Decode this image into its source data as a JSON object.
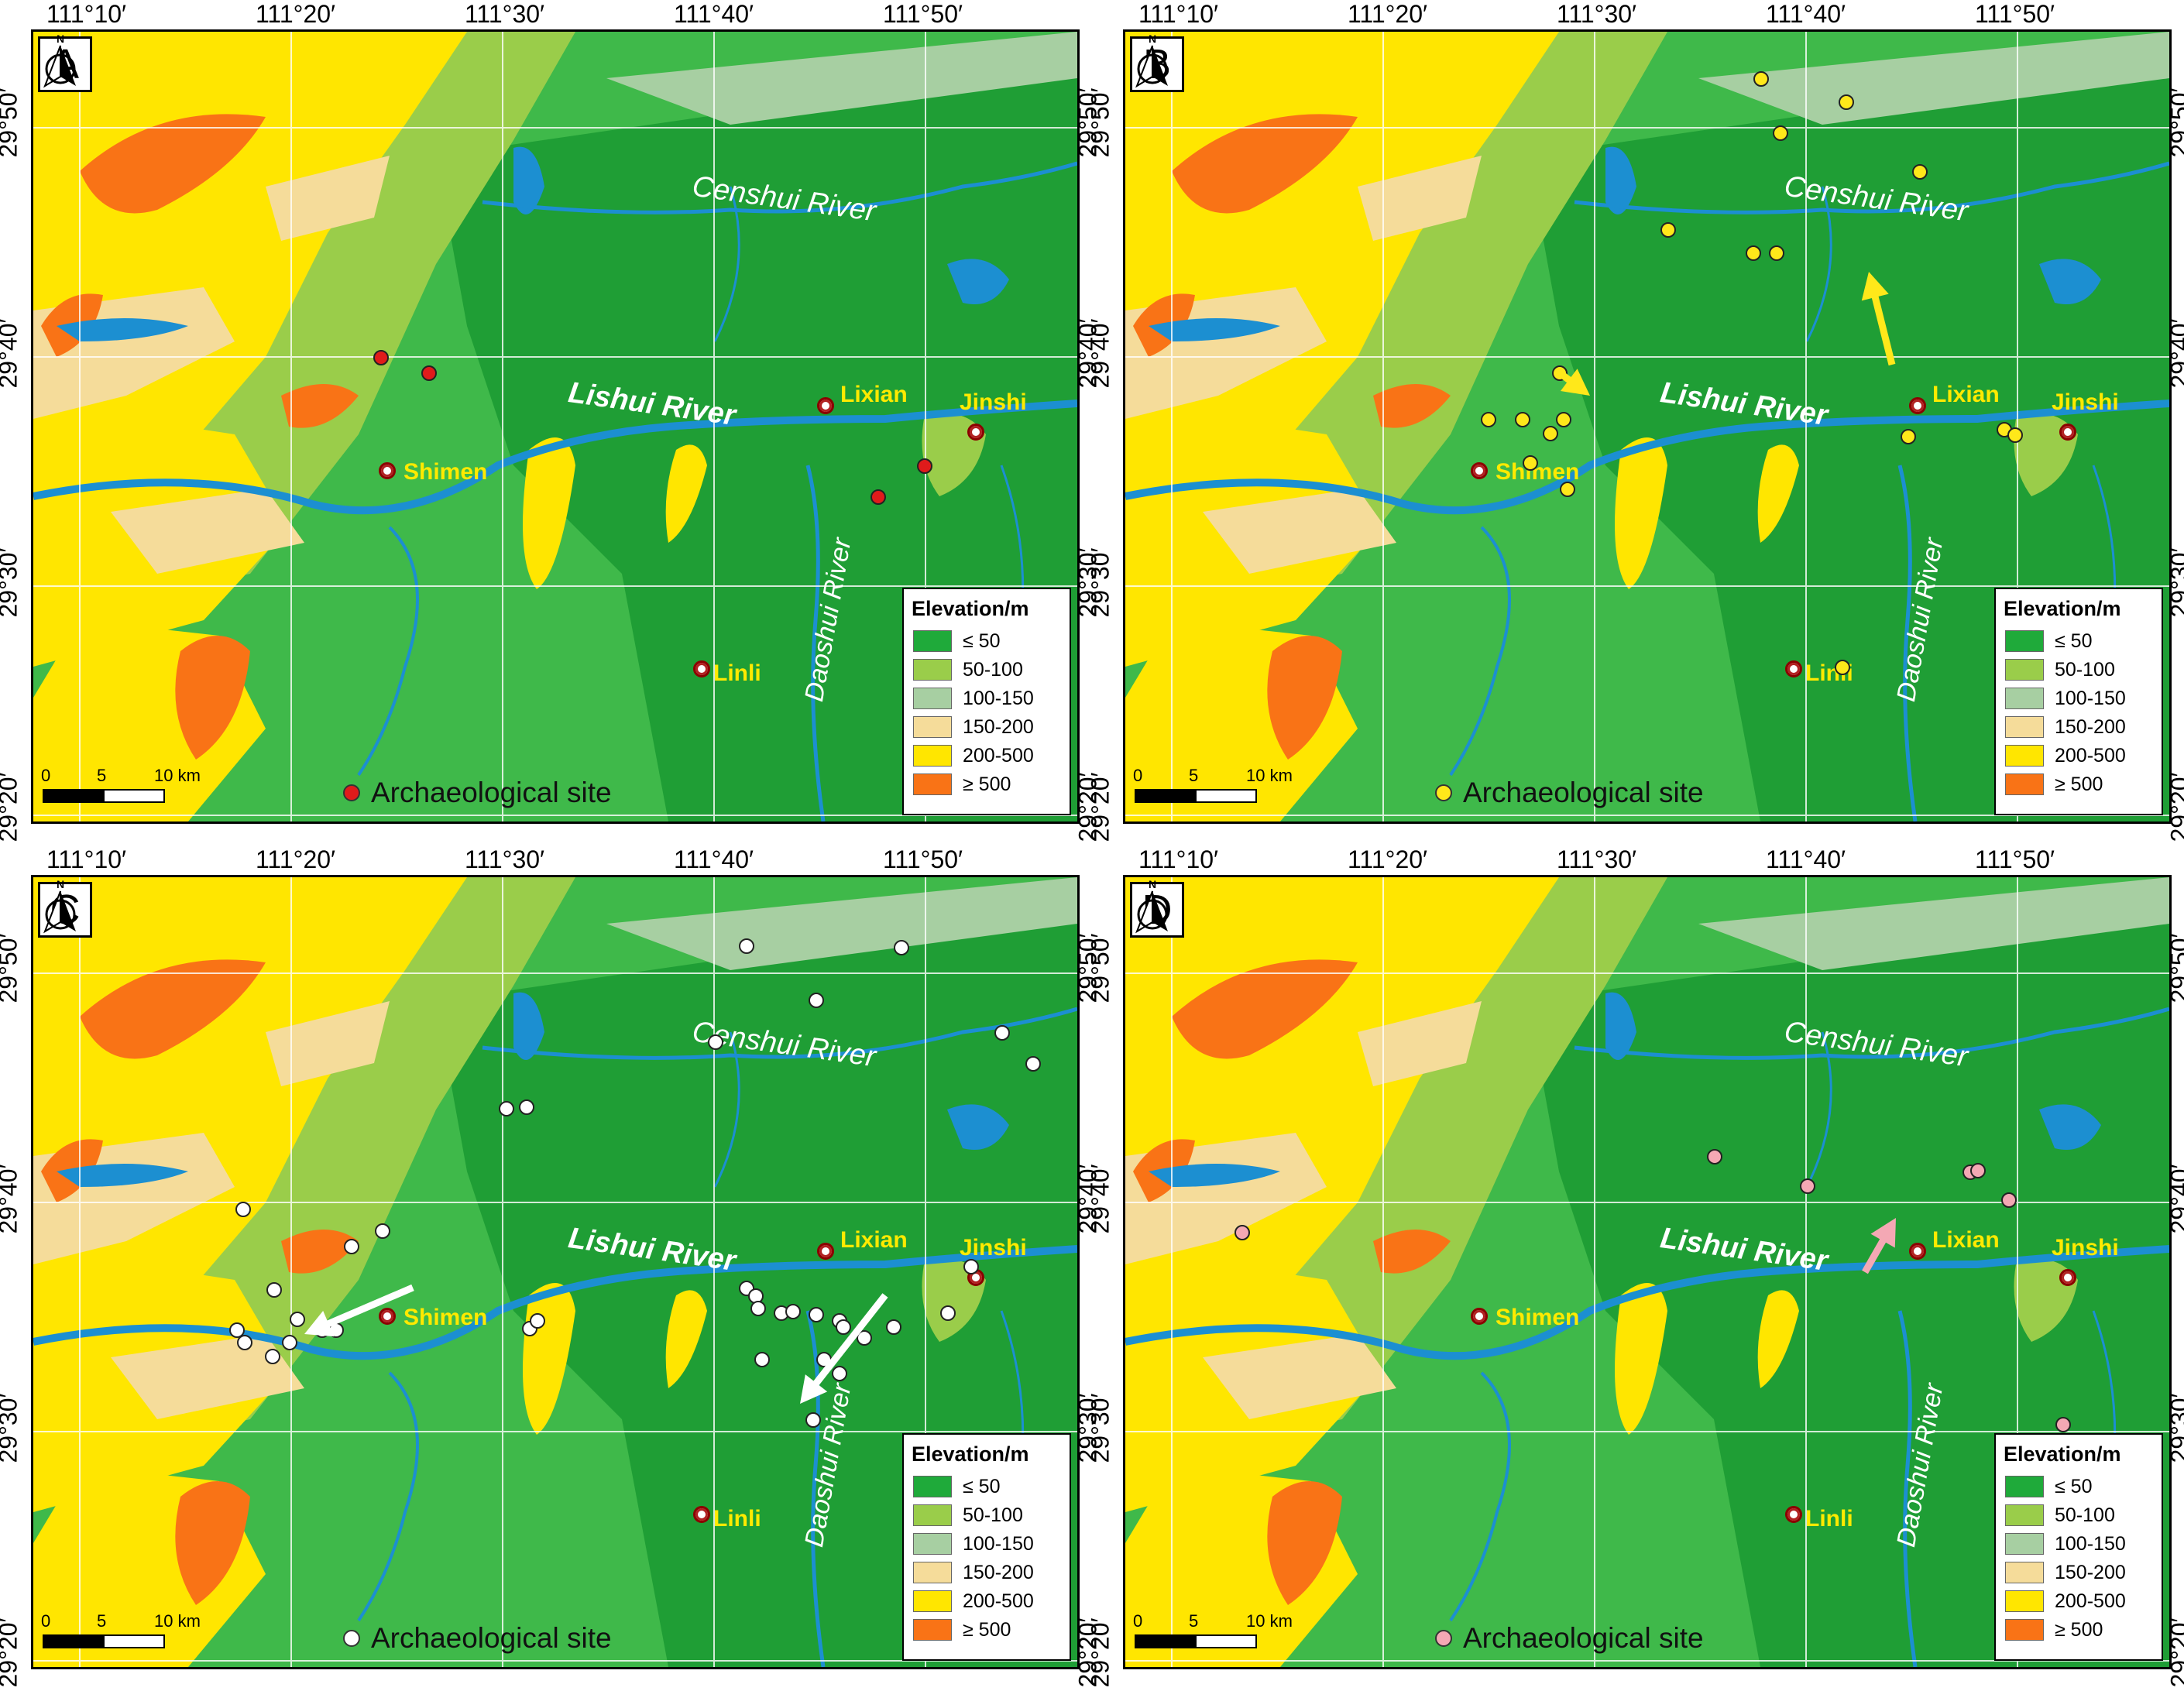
{
  "lon_labels": [
    "111°10′",
    "111°20′",
    "111°30′",
    "111°40′",
    "111°50′"
  ],
  "lat_labels": [
    "29°50′",
    "29°40′",
    "29°30′",
    "29°20′"
  ],
  "legend": {
    "title": "Elevation/m",
    "items": [
      {
        "label": "≤ 50",
        "color": "#1faa3a"
      },
      {
        "label": "50-100",
        "color": "#9acd4a"
      },
      {
        "label": "100-150",
        "color": "#a7cfa2"
      },
      {
        "label": "150-200",
        "color": "#f5dc9a"
      },
      {
        "label": "200-500",
        "color": "#ffe600"
      },
      {
        "label": "≥ 500",
        "color": "#f97316"
      }
    ]
  },
  "scale": {
    "t0": "0",
    "t1": "5",
    "t2": "10 km"
  },
  "north_label": "N",
  "site_key_label": "Archaeological site",
  "cities": {
    "shimen": "Shimen",
    "lixian": "Lixian",
    "jinshi": "Jinshi",
    "linli": "Linli"
  },
  "rivers": {
    "censhui": "Censhui River",
    "lishui_a": "Lishui",
    "lishui_b": "River",
    "daoshui": "Daoshui River"
  },
  "panels": [
    {
      "id": "A",
      "site_color": "#e01b1b"
    },
    {
      "id": "B",
      "site_color": "#ffe81a"
    },
    {
      "id": "C",
      "site_color": "#ffffff"
    },
    {
      "id": "D",
      "site_color": "#f4a8b4"
    }
  ]
}
